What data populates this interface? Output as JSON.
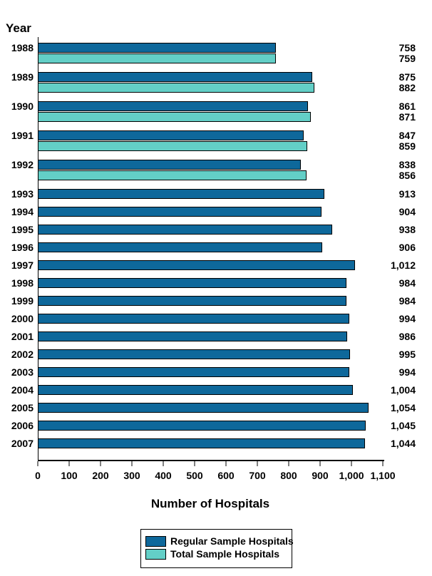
{
  "page": {
    "background": "#FFFFFF"
  },
  "chart_data": {
    "type": "bar",
    "orientation": "horizontal",
    "title": "",
    "xlabel": "Number of Hospitals",
    "ylabel": "Year",
    "xlim": [
      0,
      1100
    ],
    "x_ticks": [
      "0",
      "100",
      "200",
      "300",
      "400",
      "500",
      "600",
      "700",
      "800",
      "900",
      "1,000",
      "1,100"
    ],
    "grid": false,
    "legend_position": "bottom",
    "series": [
      {
        "name": "Regular Sample Hospitals",
        "color": "#0E689B"
      },
      {
        "name": "Total Sample Hospitals",
        "color": "#63CFC7"
      }
    ],
    "rows": [
      {
        "year": "1988",
        "regular": 758,
        "regular_label": "758",
        "total": 759,
        "total_label": "759"
      },
      {
        "year": "1989",
        "regular": 875,
        "regular_label": "875",
        "total": 882,
        "total_label": "882"
      },
      {
        "year": "1990",
        "regular": 861,
        "regular_label": "861",
        "total": 871,
        "total_label": "871"
      },
      {
        "year": "1991",
        "regular": 847,
        "regular_label": "847",
        "total": 859,
        "total_label": "859"
      },
      {
        "year": "1992",
        "regular": 838,
        "regular_label": "838",
        "total": 856,
        "total_label": "856"
      },
      {
        "year": "1993",
        "regular": 913,
        "regular_label": "913",
        "total": null,
        "total_label": null
      },
      {
        "year": "1994",
        "regular": 904,
        "regular_label": "904",
        "total": null,
        "total_label": null
      },
      {
        "year": "1995",
        "regular": 938,
        "regular_label": "938",
        "total": null,
        "total_label": null
      },
      {
        "year": "1996",
        "regular": 906,
        "regular_label": "906",
        "total": null,
        "total_label": null
      },
      {
        "year": "1997",
        "regular": 1012,
        "regular_label": "1,012",
        "total": null,
        "total_label": null
      },
      {
        "year": "1998",
        "regular": 984,
        "regular_label": "984",
        "total": null,
        "total_label": null
      },
      {
        "year": "1999",
        "regular": 984,
        "regular_label": "984",
        "total": null,
        "total_label": null
      },
      {
        "year": "2000",
        "regular": 994,
        "regular_label": "994",
        "total": null,
        "total_label": null
      },
      {
        "year": "2001",
        "regular": 986,
        "regular_label": "986",
        "total": null,
        "total_label": null
      },
      {
        "year": "2002",
        "regular": 995,
        "regular_label": "995",
        "total": null,
        "total_label": null
      },
      {
        "year": "2003",
        "regular": 994,
        "regular_label": "994",
        "total": null,
        "total_label": null
      },
      {
        "year": "2004",
        "regular": 1004,
        "regular_label": "1,004",
        "total": null,
        "total_label": null
      },
      {
        "year": "2005",
        "regular": 1054,
        "regular_label": "1,054",
        "total": null,
        "total_label": null
      },
      {
        "year": "2006",
        "regular": 1045,
        "regular_label": "1,045",
        "total": null,
        "total_label": null
      },
      {
        "year": "2007",
        "regular": 1044,
        "regular_label": "1,044",
        "total": null,
        "total_label": null
      }
    ]
  }
}
